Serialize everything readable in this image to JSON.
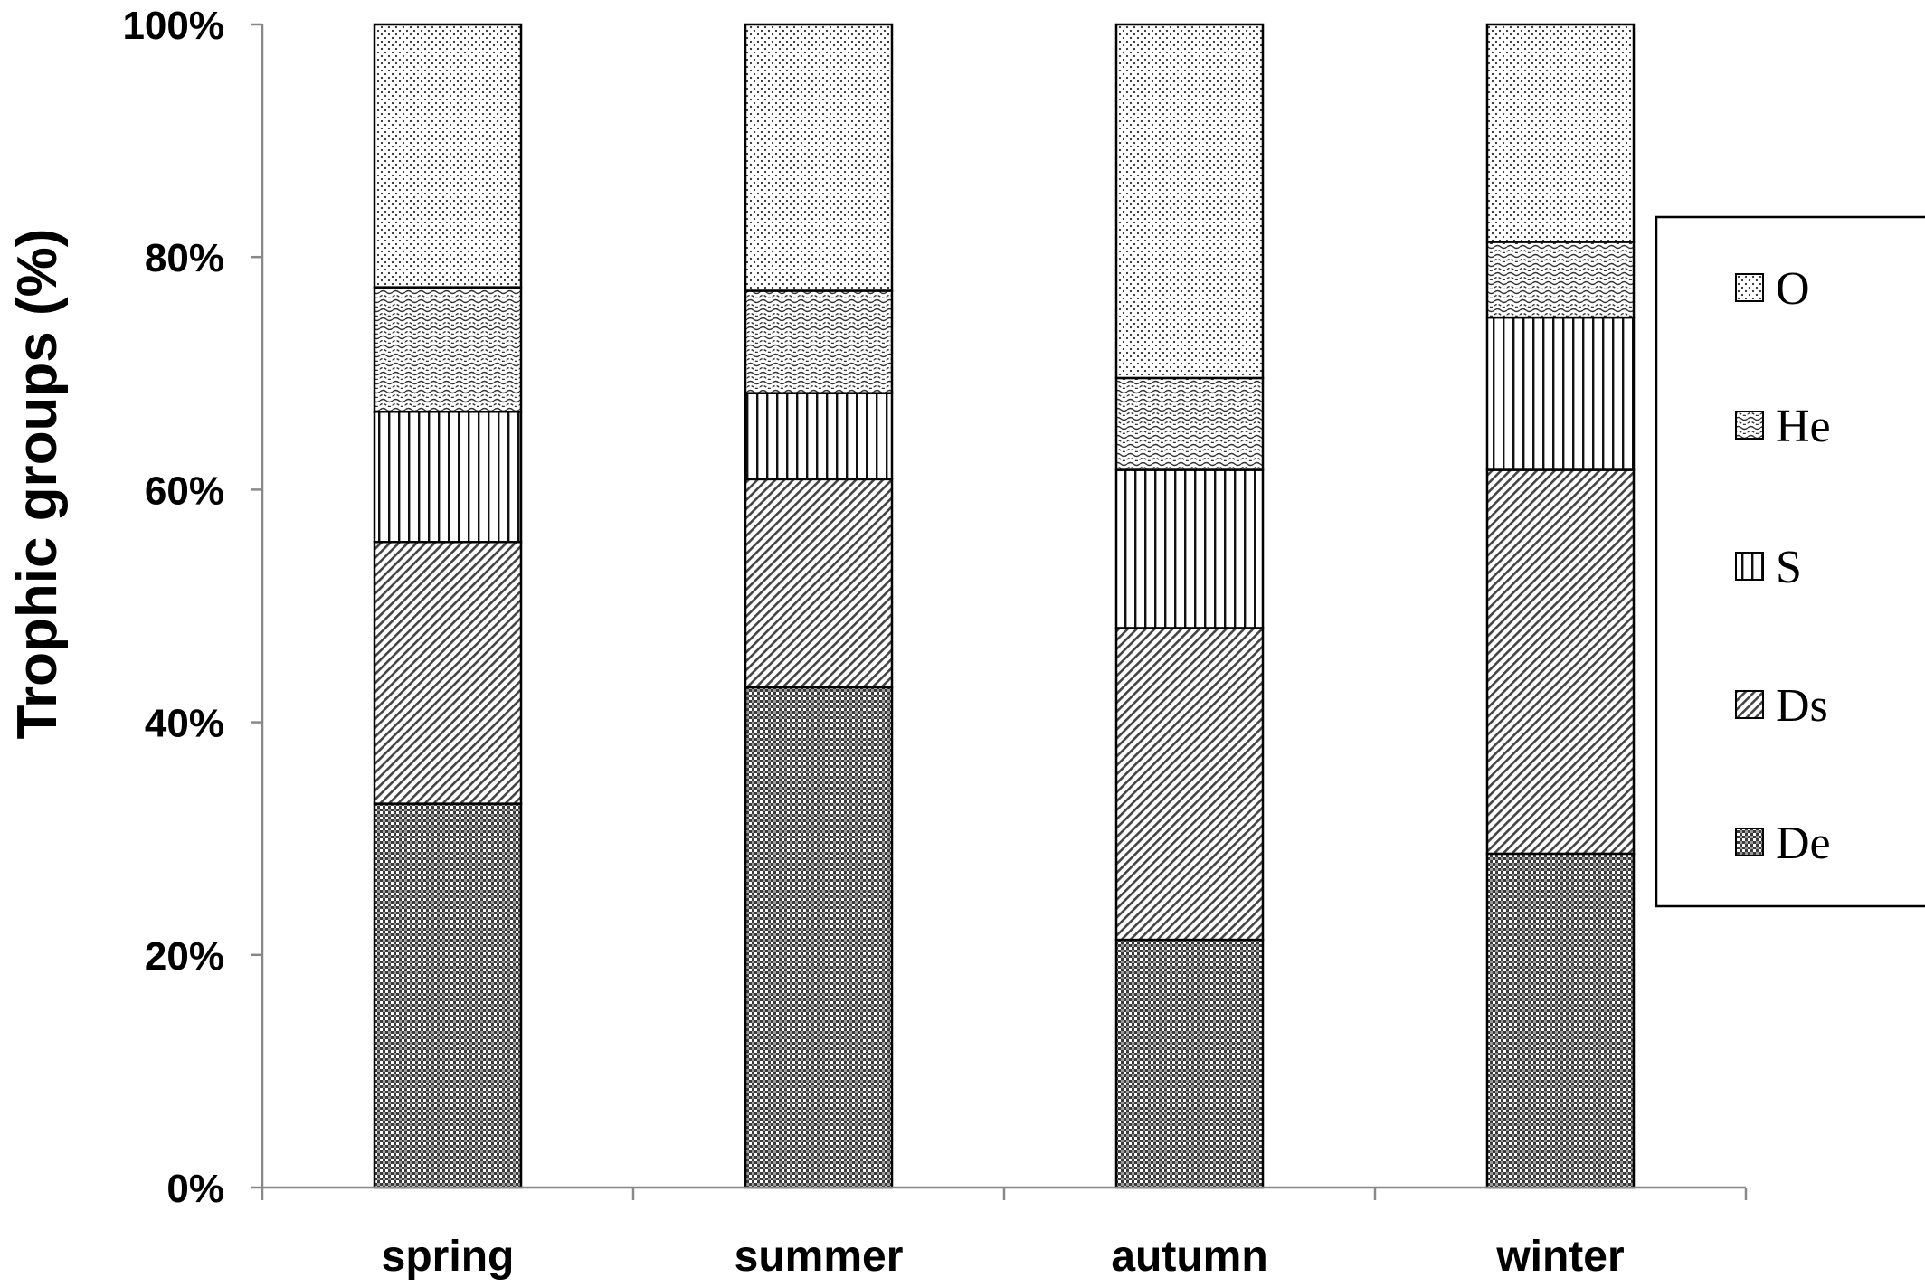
{
  "chart_data": {
    "type": "bar",
    "stacked": true,
    "normalized": true,
    "title": "",
    "xlabel": "",
    "ylabel": "Trophic groups (%)",
    "ylim": [
      0,
      100
    ],
    "yticks": [
      "0%",
      "20%",
      "40%",
      "60%",
      "80%",
      "100%"
    ],
    "categories": [
      "spring",
      "summer",
      "autumn",
      "winter"
    ],
    "series": [
      {
        "name": "De",
        "pattern": "checker",
        "values": [
          33,
          43,
          21.3,
          28.7
        ]
      },
      {
        "name": "Ds",
        "pattern": "diagonal",
        "values": [
          22.5,
          17.9,
          26.8,
          33
        ]
      },
      {
        "name": "S",
        "pattern": "vertical",
        "values": [
          11.2,
          7.4,
          13.6,
          13.1
        ]
      },
      {
        "name": "He",
        "pattern": "wavy",
        "values": [
          10.7,
          8.8,
          7.9,
          6.5
        ]
      },
      {
        "name": "O",
        "pattern": "dots",
        "values": [
          22.6,
          22.9,
          30.4,
          18.7
        ]
      }
    ],
    "legend_order": [
      "O",
      "He",
      "S",
      "Ds",
      "De"
    ],
    "legend_position": "right",
    "grid": false,
    "colors": {
      "axis": "#888888",
      "bar_outline": "#000000"
    }
  }
}
